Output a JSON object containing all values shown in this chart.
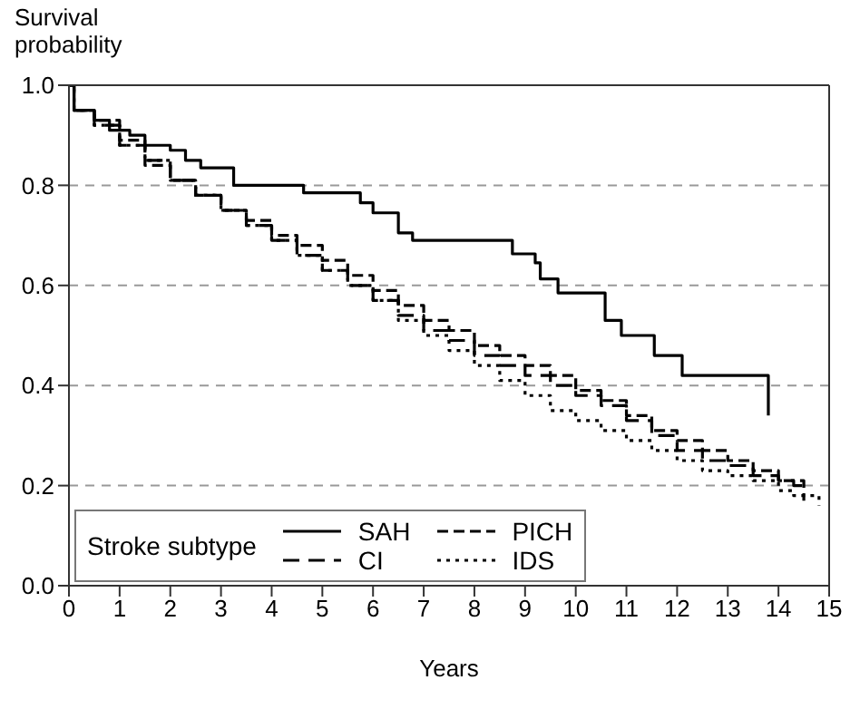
{
  "chart_data": {
    "type": "step",
    "ylabel": "Survival\nprobability",
    "xlabel": "Years",
    "xlim": [
      0,
      15
    ],
    "xticks": [
      0,
      1,
      2,
      3,
      4,
      5,
      6,
      7,
      8,
      9,
      10,
      11,
      12,
      13,
      14,
      15
    ],
    "ylim": [
      0,
      1
    ],
    "yticks": [
      {
        "value": 0,
        "label": "0.0"
      },
      0.2,
      0.4,
      0.6,
      0.8,
      {
        "value": 1,
        "label": "1.0"
      }
    ],
    "grid": "y",
    "legend": "bottom left",
    "legend_title": "Stroke subtype",
    "series": [
      {
        "name": "SAH",
        "color": "#000000",
        "line_style": "solid",
        "x": [
          0,
          0.1,
          0.5,
          0.8,
          1.2,
          1.5,
          2.0,
          2.3,
          2.6,
          3.25,
          4.63,
          5.75,
          6.0,
          6.5,
          6.78,
          8.75,
          9.2,
          9.3,
          9.65,
          10.58,
          10.9,
          11.55,
          12.1,
          13.8
        ],
        "values": [
          1.0,
          0.95,
          0.93,
          0.91,
          0.9,
          0.88,
          0.87,
          0.85,
          0.835,
          0.8,
          0.785,
          0.765,
          0.745,
          0.705,
          0.69,
          0.663,
          0.645,
          0.613,
          0.585,
          0.53,
          0.5,
          0.46,
          0.42,
          0.34
        ]
      },
      {
        "name": "CI",
        "color": "#000000",
        "line_style": "dashed",
        "x": [
          0,
          0.1,
          0.5,
          1,
          1.5,
          2,
          2.5,
          3,
          3.5,
          4,
          4.5,
          5,
          5.5,
          6,
          6.5,
          7,
          7.5,
          8,
          8.5,
          9,
          9.5,
          10,
          10.5,
          11,
          11.5,
          12,
          12.5,
          13,
          13.5,
          14,
          14.3,
          14.5
        ],
        "values": [
          1,
          0.95,
          0.92,
          0.88,
          0.85,
          0.81,
          0.78,
          0.75,
          0.72,
          0.69,
          0.66,
          0.63,
          0.6,
          0.57,
          0.54,
          0.51,
          0.49,
          0.46,
          0.44,
          0.42,
          0.4,
          0.38,
          0.36,
          0.33,
          0.3,
          0.27,
          0.25,
          0.24,
          0.22,
          0.21,
          0.2,
          0.17
        ]
      },
      {
        "name": "PICH",
        "color": "#000000",
        "line_style": "dashed",
        "x": [
          0,
          0.1,
          0.5,
          1,
          1.5,
          2,
          2.5,
          3,
          3.5,
          4,
          4.5,
          5,
          5.5,
          6,
          6.5,
          7,
          7.5,
          8,
          8.5,
          9,
          9.5,
          10,
          10.5,
          11,
          11.5,
          12,
          12.5,
          13,
          13.5,
          14,
          14.3,
          14.5
        ],
        "values": [
          1,
          0.95,
          0.93,
          0.89,
          0.84,
          0.81,
          0.78,
          0.75,
          0.73,
          0.7,
          0.68,
          0.65,
          0.62,
          0.59,
          0.56,
          0.53,
          0.51,
          0.48,
          0.46,
          0.44,
          0.42,
          0.39,
          0.37,
          0.34,
          0.31,
          0.29,
          0.27,
          0.25,
          0.23,
          0.21,
          0.21,
          0.19
        ]
      },
      {
        "name": "IDS",
        "color": "#000000",
        "line_style": "dotted",
        "x": [
          0,
          0.1,
          0.5,
          1,
          1.5,
          2,
          2.5,
          3,
          3.5,
          4,
          4.5,
          5,
          5.5,
          6,
          6.5,
          7,
          7.5,
          8,
          8.5,
          9,
          9.5,
          10,
          10.5,
          11,
          11.5,
          12,
          12.5,
          13,
          13.5,
          14,
          14.3,
          14.8
        ],
        "values": [
          1,
          0.95,
          0.92,
          0.88,
          0.85,
          0.81,
          0.78,
          0.75,
          0.72,
          0.69,
          0.66,
          0.63,
          0.6,
          0.57,
          0.53,
          0.5,
          0.47,
          0.44,
          0.41,
          0.38,
          0.35,
          0.33,
          0.31,
          0.29,
          0.27,
          0.25,
          0.23,
          0.22,
          0.21,
          0.19,
          0.18,
          0.16
        ]
      }
    ]
  }
}
